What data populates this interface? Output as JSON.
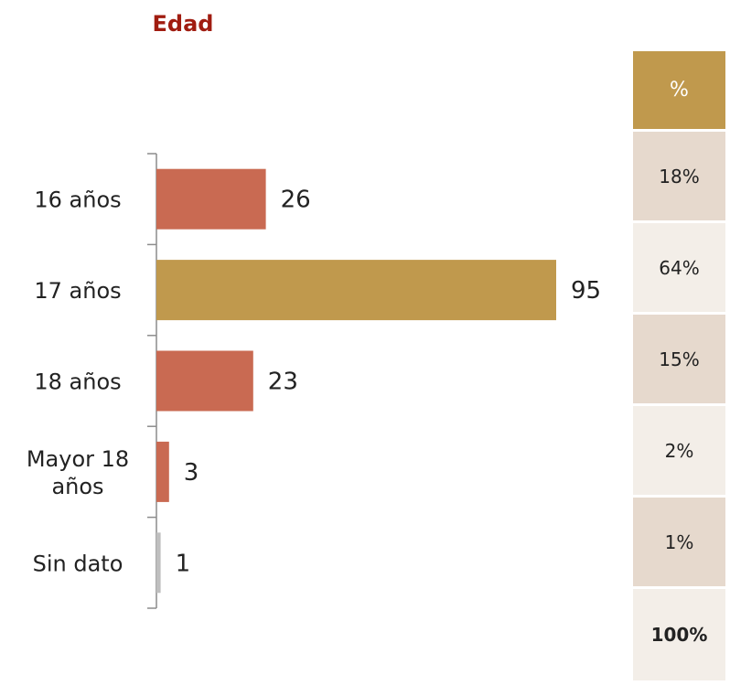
{
  "chart_data": {
    "type": "bar",
    "orientation": "horizontal",
    "title": "Edad",
    "categories": [
      "16 años",
      "17 años",
      "18 años",
      "Mayor 18 años",
      "Sin dato"
    ],
    "values": [
      26,
      95,
      23,
      3,
      1
    ],
    "bar_colors": [
      "#c96a52",
      "#c0994d",
      "#c96a52",
      "#c96a52",
      "#bfbfbf"
    ],
    "data_labels": true
  },
  "pct_table": {
    "header": "%",
    "values": [
      "18%",
      "64%",
      "15%",
      "2%",
      "1%"
    ],
    "total": "100%"
  }
}
